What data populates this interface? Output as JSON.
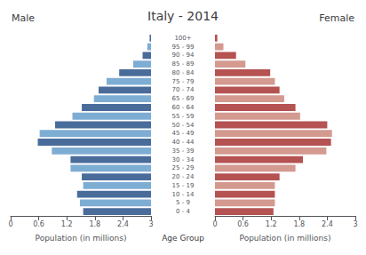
{
  "chart_data": {
    "type": "bar",
    "orientation": "horizontal",
    "title": "Italy - 2014",
    "categories": [
      "0 - 4",
      "5 - 9",
      "10 - 14",
      "15 - 19",
      "20 - 24",
      "25 - 29",
      "30 - 34",
      "35 - 39",
      "40 - 44",
      "45 - 49",
      "50 - 54",
      "55 - 59",
      "60 - 64",
      "65 - 69",
      "70 - 74",
      "75 - 79",
      "80 - 84",
      "85 - 89",
      "90 - 94",
      "95 - 99",
      "100+"
    ],
    "category_label": "Age Group",
    "grid": false,
    "xlim": [
      0,
      3.0
    ],
    "series": [
      {
        "name": "Male",
        "values": [
          1.45,
          1.52,
          1.58,
          1.45,
          1.48,
          1.72,
          1.72,
          2.12,
          2.42,
          2.38,
          2.05,
          1.68,
          1.48,
          1.22,
          1.12,
          0.95,
          0.68,
          0.38,
          0.18,
          0.08,
          0.03
        ],
        "colors": [
          "#4a6c9b",
          "#7eadd4",
          "#4a6c9b",
          "#7eadd4",
          "#4a6c9b",
          "#7eadd4",
          "#4a6c9b",
          "#7eadd4",
          "#4a6c9b",
          "#7eadd4",
          "#4a6c9b",
          "#7eadd4",
          "#4a6c9b",
          "#7eadd4",
          "#4a6c9b",
          "#7eadd4",
          "#4a6c9b",
          "#7eadd4",
          "#4a6c9b",
          "#7eadd4",
          "#4a6c9b"
        ],
        "xlabel": "Population (in millions)",
        "xticks": [
          {
            "value": 0,
            "label": "3"
          },
          {
            "value": 0.6,
            "label": "2.4"
          },
          {
            "value": 1.2,
            "label": "1.8"
          },
          {
            "value": 1.8,
            "label": "1.2"
          },
          {
            "value": 2.4,
            "label": "0.6"
          },
          {
            "value": 3.0,
            "label": "0"
          }
        ]
      },
      {
        "name": "Female",
        "values": [
          1.25,
          1.28,
          1.28,
          1.28,
          1.38,
          1.72,
          1.88,
          2.38,
          2.48,
          2.5,
          2.4,
          1.82,
          1.72,
          1.48,
          1.38,
          1.28,
          1.18,
          0.65,
          0.45,
          0.18,
          0.05
        ],
        "colors": [
          "#b55252",
          "#d4998f",
          "#b55252",
          "#d4998f",
          "#b55252",
          "#d4998f",
          "#b55252",
          "#d4998f",
          "#b55252",
          "#d4998f",
          "#b55252",
          "#d4998f",
          "#b55252",
          "#d4998f",
          "#b55252",
          "#d4998f",
          "#b55252",
          "#d4998f",
          "#b55252",
          "#d4998f",
          "#b55252"
        ],
        "xlabel": "Population (in millions)",
        "xticks": [
          0,
          0.6,
          1.2,
          1.8,
          2.4,
          3
        ]
      }
    ]
  }
}
